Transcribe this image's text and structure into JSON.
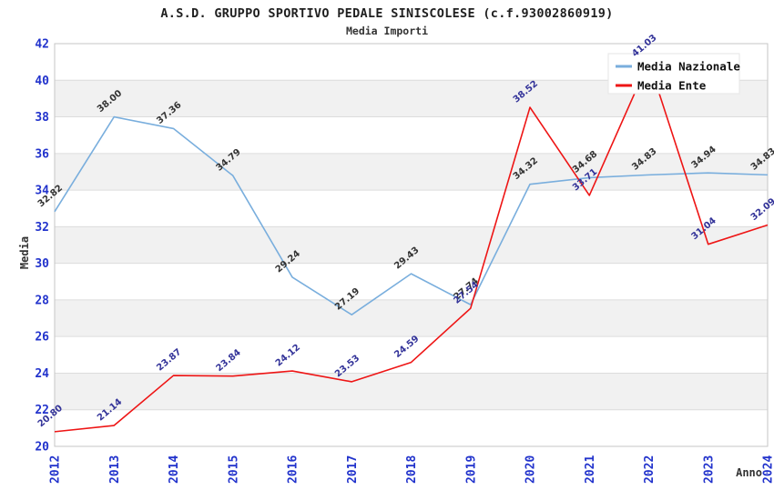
{
  "title": "A.S.D. GRUPPO SPORTIVO PEDALE SINISCOLESE (c.f.93002860919)",
  "subtitle": "Media Importi",
  "chart_data": {
    "type": "line",
    "categories": [
      "2012",
      "2013",
      "2014",
      "2015",
      "2016",
      "2017",
      "2018",
      "2019",
      "2020",
      "2021",
      "2022",
      "2023",
      "2024"
    ],
    "series": [
      {
        "name": "Media Nazionale",
        "color": "#79aedd",
        "label_color": "#333333",
        "values": [
          32.82,
          38.0,
          37.36,
          34.79,
          29.24,
          27.19,
          29.43,
          27.74,
          34.32,
          34.68,
          34.83,
          34.94,
          34.83
        ]
      },
      {
        "name": "Media Ente",
        "color": "#ee1515",
        "label_color": "#333399",
        "values": [
          20.8,
          21.14,
          23.87,
          23.84,
          24.12,
          23.53,
          24.59,
          27.54,
          38.52,
          33.71,
          41.03,
          31.04,
          32.09
        ]
      }
    ],
    "xlabel": "Anno",
    "ylabel": "Media",
    "ylim": [
      20,
      42
    ],
    "ytick_step": 2,
    "grid": "horizontal",
    "band_fill": "#f1f1f1",
    "grid_color": "#dcdcdc",
    "border_color": "#c6c6c6",
    "tick_color": "#2233cc",
    "legend_position": "top-right",
    "label_decimals": 2
  }
}
